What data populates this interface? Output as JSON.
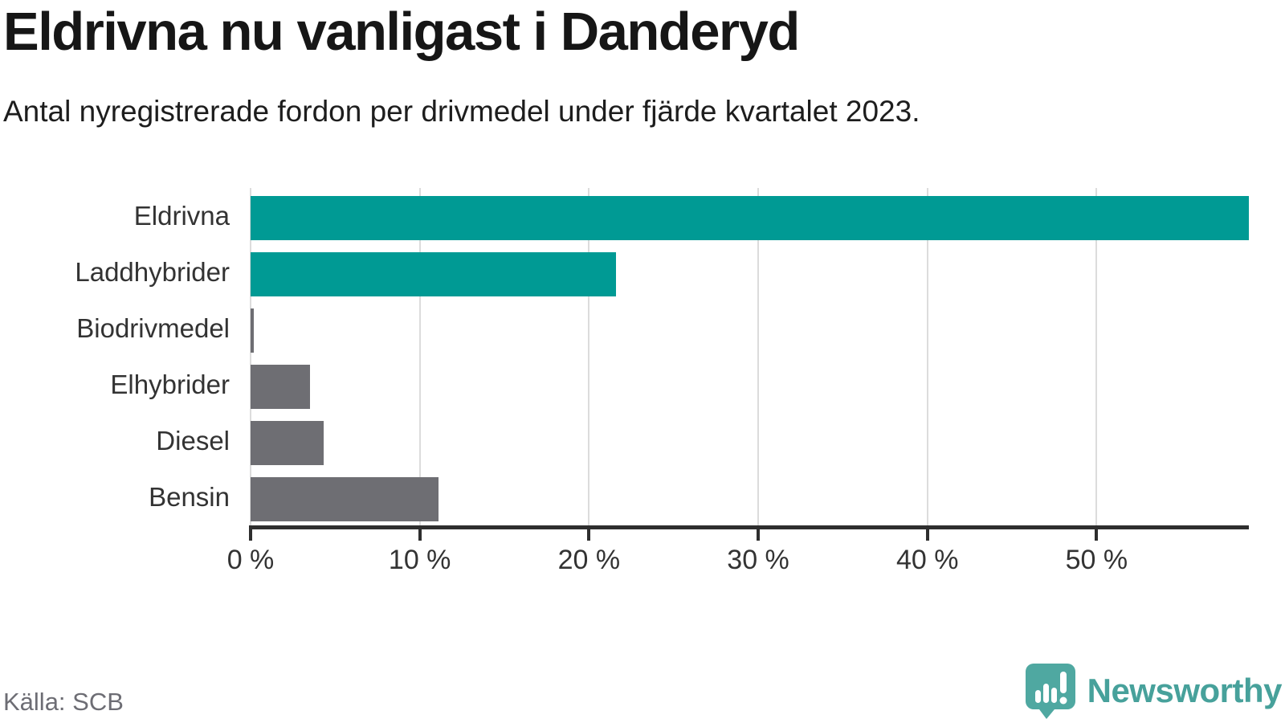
{
  "header": {
    "title": "Eldrivna nu vanligast i Danderyd",
    "subtitle": "Antal nyregistrerade fordon per drivmedel under fjärde kvartalet 2023."
  },
  "footer": {
    "source": "Källa: SCB",
    "logo_text": "Newsworthy"
  },
  "colors": {
    "bar_teal": "#009A94",
    "bar_gray": "#6E6E73",
    "axis": "#2E2E2E",
    "gridline": "#DCDCDC",
    "label_text": "#333333",
    "title_text": "#161616",
    "muted_text": "#6D6D74",
    "logo_icon_teal": "#4FA8A1",
    "logo_text_teal": "#47A19B"
  },
  "chart_data": {
    "type": "bar",
    "orientation": "horizontal",
    "title": "Eldrivna nu vanligast i Danderyd",
    "subtitle": "Antal nyregistrerade fordon per drivmedel under fjärde kvartalet 2023.",
    "categories": [
      "Eldrivna",
      "Laddhybrider",
      "Biodrivmedel",
      "Elhybrider",
      "Diesel",
      "Bensin"
    ],
    "values": [
      59.0,
      21.6,
      0.2,
      3.5,
      4.3,
      11.1
    ],
    "unit": "%",
    "bar_colors": [
      "#009A94",
      "#009A94",
      "#6E6E73",
      "#6E6E73",
      "#6E6E73",
      "#6E6E73"
    ],
    "xlabel": "",
    "ylabel": "",
    "xlim": [
      0,
      59
    ],
    "x_tick_values": [
      0,
      10,
      20,
      30,
      40,
      50
    ],
    "x_ticks": [
      "0 %",
      "10 %",
      "20 %",
      "30 %",
      "40 %",
      "50 %"
    ],
    "grid": "vertical-gridlines-behind-bars",
    "legend": "none",
    "source": "Källa: SCB"
  }
}
